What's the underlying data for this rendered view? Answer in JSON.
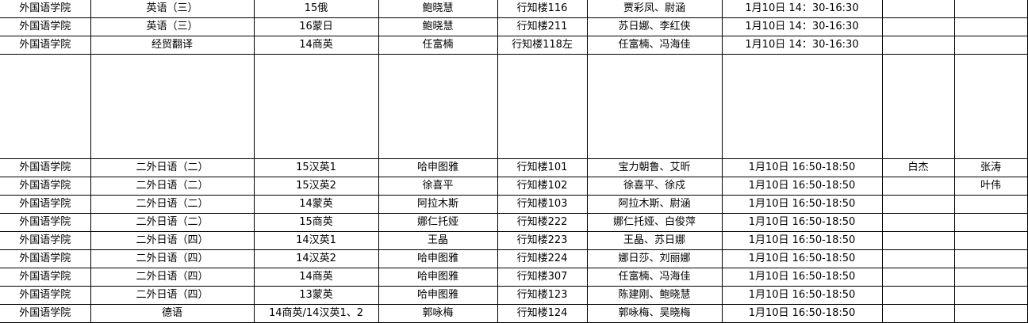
{
  "sheet": {
    "rows": [
      [
        "外国语学院",
        "英语（三）",
        "15俄",
        "鲍晓慧",
        "行知楼116",
        "贾彩凤、尉涵",
        "1月10日 14：30-16:30",
        "",
        ""
      ],
      [
        "外国语学院",
        "英语（三）",
        "16蒙日",
        "鲍晓慧",
        "行知楼211",
        "苏日娜、李红侠",
        "1月10日 14：30-16:30",
        "",
        ""
      ],
      [
        "外国语学院",
        "经贸翻译",
        "14商英",
        "任富楠",
        "行知楼118左",
        "任富楠、冯海佳",
        "1月10日 14：30-16:30",
        "",
        ""
      ],
      [
        "",
        "",
        "",
        "",
        "",
        "",
        "",
        "",
        ""
      ],
      [
        "外国语学院",
        "二外日语（二）",
        "15汉英1",
        "哈申图雅",
        "行知楼101",
        "宝力朝鲁、艾昕",
        "1月10日 16:50-18:50",
        "白杰",
        "张涛"
      ],
      [
        "外国语学院",
        "二外日语（二）",
        "15汉英2",
        "徐喜平",
        "行知楼102",
        "徐喜平、徐戍",
        "1月10日 16:50-18:50",
        "",
        "叶伟"
      ],
      [
        "外国语学院",
        "二外日语（二）",
        "14蒙英",
        "阿拉木斯",
        "行知楼103",
        "阿拉木斯、尉涵",
        "1月10日 16:50-18:50",
        "",
        ""
      ],
      [
        "外国语学院",
        "二外日语（二）",
        "15商英",
        "娜仁托娅",
        "行知楼222",
        "娜仁托娅、白俊萍",
        "1月10日 16:50-18:50",
        "",
        ""
      ],
      [
        "外国语学院",
        "二外日语（四）",
        "14汉英1",
        "王晶",
        "行知楼223",
        "王晶、苏日娜",
        "1月10日 16:50-18:50",
        "",
        ""
      ],
      [
        "外国语学院",
        "二外日语（四）",
        "14汉英2",
        "哈申图雅",
        "行知楼224",
        "娜日莎、刘丽娜",
        "1月10日 16:50-18:50",
        "",
        ""
      ],
      [
        "外国语学院",
        "二外日语（四）",
        "14商英",
        "哈申图雅",
        "行知楼307",
        "任富楠、冯海佳",
        "1月10日 16:50-18:50",
        "",
        ""
      ],
      [
        "外国语学院",
        "二外日语（四）",
        "13蒙英",
        "哈申图雅",
        "行知楼123",
        "陈建刚、鲍晓慧",
        "1月10日 16:50-18:50",
        "",
        ""
      ],
      [
        "外国语学院",
        "德语",
        "14商英/14汉英1、2",
        "郭咏梅",
        "行知楼124",
        "郭咏梅、吴晓梅",
        "1月10日 16:50-18:50",
        "",
        ""
      ]
    ]
  }
}
